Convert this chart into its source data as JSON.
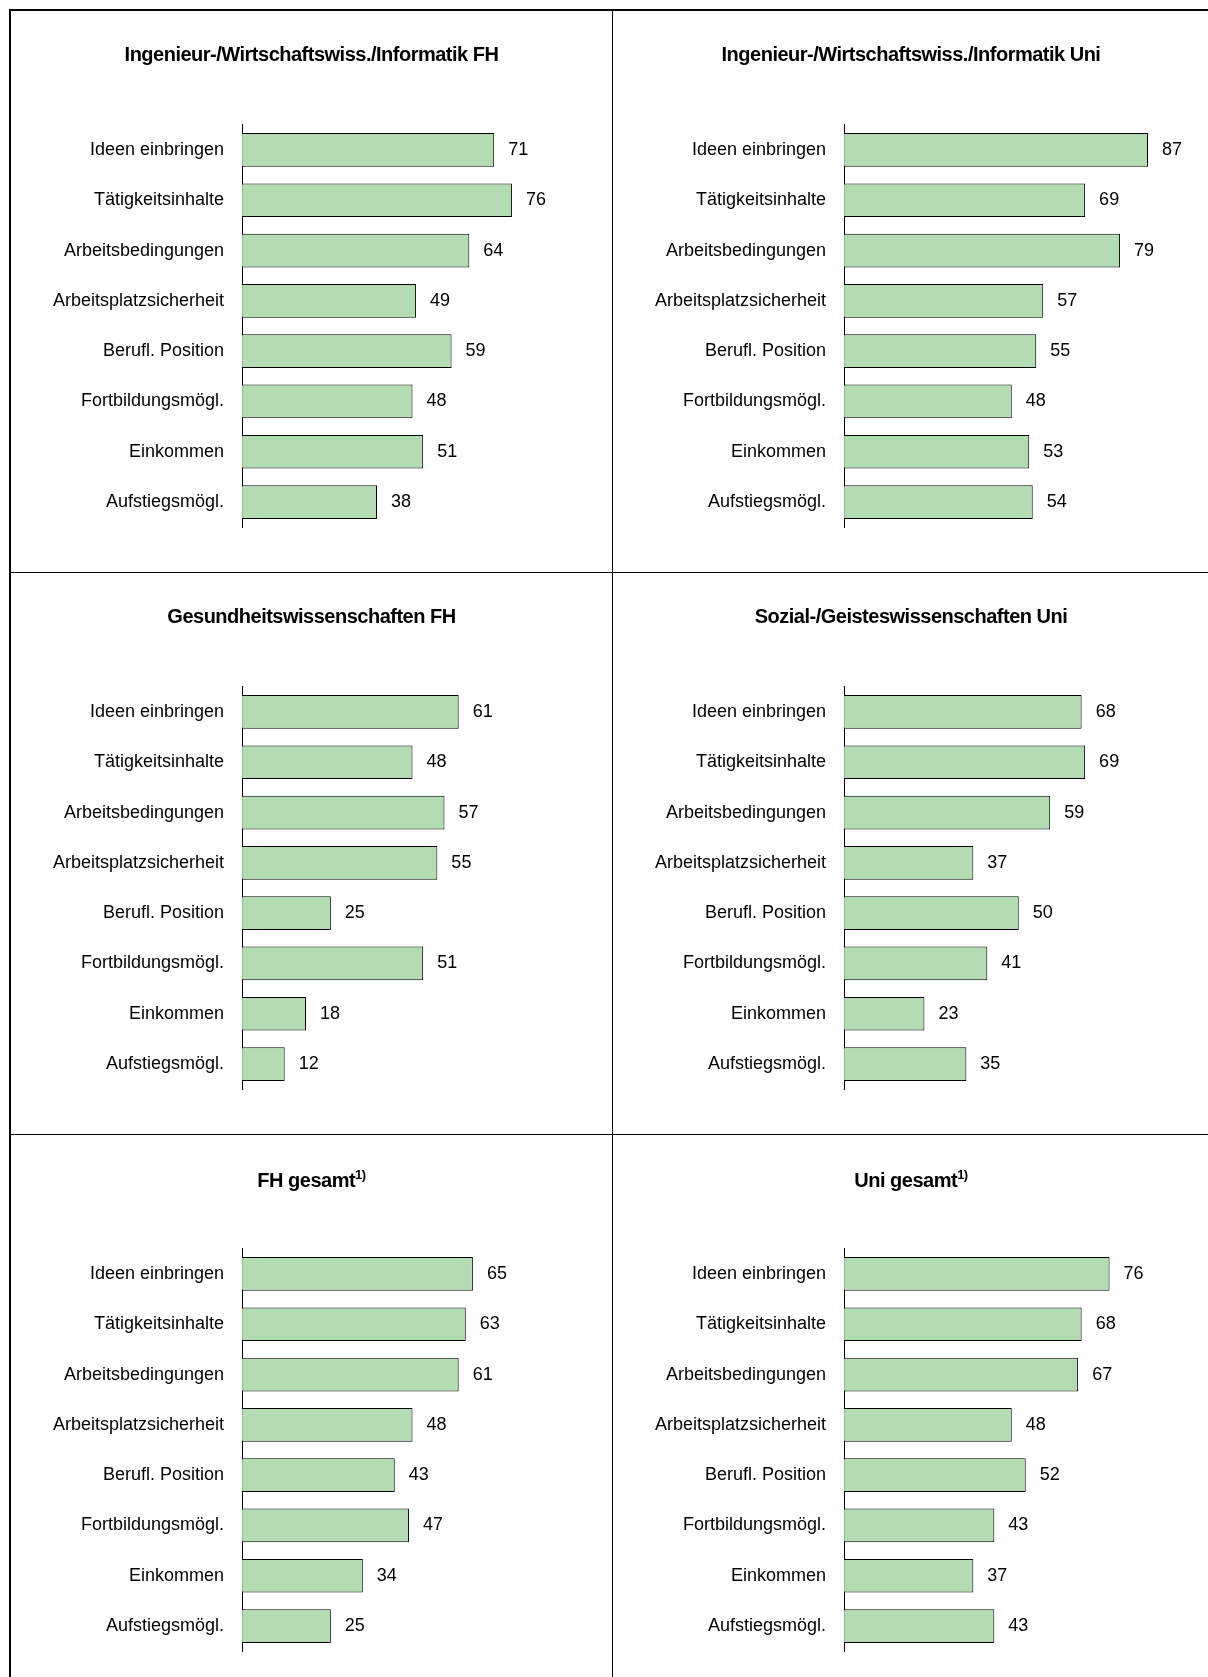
{
  "chart_data": [
    {
      "type": "bar",
      "orientation": "horizontal",
      "title": "Ingenieur-/Wirtschaftswiss./Informatik FH",
      "categories": [
        "Ideen einbringen",
        "Tätigkeitsinhalte",
        "Arbeitsbedingungen",
        "Arbeitsplatzsicherheit",
        "Berufl. Position",
        "Fortbildungsmögl.",
        "Einkommen",
        "Aufstiegsmögl."
      ],
      "values": [
        71,
        76,
        64,
        49,
        59,
        48,
        51,
        38
      ],
      "color": "#b3dcb3",
      "data_labels": true
    },
    {
      "type": "bar",
      "orientation": "horizontal",
      "title": "Ingenieur-/Wirtschaftswiss./Informatik Uni",
      "categories": [
        "Ideen einbringen",
        "Tätigkeitsinhalte",
        "Arbeitsbedingungen",
        "Arbeitsplatzsicherheit",
        "Berufl. Position",
        "Fortbildungsmögl.",
        "Einkommen",
        "Aufstiegsmögl."
      ],
      "values": [
        87,
        69,
        79,
        57,
        55,
        48,
        53,
        54
      ],
      "color": "#b3dcb3",
      "data_labels": true
    },
    {
      "type": "bar",
      "orientation": "horizontal",
      "title": "Gesundheitswissenschaften FH",
      "categories": [
        "Ideen einbringen",
        "Tätigkeitsinhalte",
        "Arbeitsbedingungen",
        "Arbeitsplatzsicherheit",
        "Berufl. Position",
        "Fortbildungsmögl.",
        "Einkommen",
        "Aufstiegsmögl."
      ],
      "values": [
        61,
        48,
        57,
        55,
        25,
        51,
        18,
        12
      ],
      "color": "#b3dcb3",
      "data_labels": true
    },
    {
      "type": "bar",
      "orientation": "horizontal",
      "title": "Sozial-/Geisteswissenschaften Uni",
      "categories": [
        "Ideen einbringen",
        "Tätigkeitsinhalte",
        "Arbeitsbedingungen",
        "Arbeitsplatzsicherheit",
        "Berufl. Position",
        "Fortbildungsmögl.",
        "Einkommen",
        "Aufstiegsmögl."
      ],
      "values": [
        68,
        69,
        59,
        37,
        50,
        41,
        23,
        35
      ],
      "color": "#b3dcb3",
      "data_labels": true
    },
    {
      "type": "bar",
      "orientation": "horizontal",
      "title": "FH gesamt$^{1)}$",
      "categories": [
        "Ideen einbringen",
        "Tätigkeitsinhalte",
        "Arbeitsbedingungen",
        "Arbeitsplatzsicherheit",
        "Berufl. Position",
        "Fortbildungsmögl.",
        "Einkommen",
        "Aufstiegsmögl."
      ],
      "values": [
        65,
        63,
        61,
        48,
        43,
        47,
        34,
        25
      ],
      "color": "#b3dcb3",
      "data_labels": true
    },
    {
      "type": "bar",
      "orientation": "horizontal",
      "title": "Uni gesamt$^{1)}$",
      "categories": [
        "Ideen einbringen",
        "Tätigkeitsinhalte",
        "Arbeitsbedingungen",
        "Arbeitsplatzsicherheit",
        "Berufl. Position",
        "Fortbildungsmögl.",
        "Einkommen",
        "Aufstiegsmögl."
      ],
      "values": [
        76,
        68,
        67,
        48,
        52,
        43,
        37,
        43
      ],
      "color": "#b3dcb3",
      "data_labels": true
    }
  ]
}
